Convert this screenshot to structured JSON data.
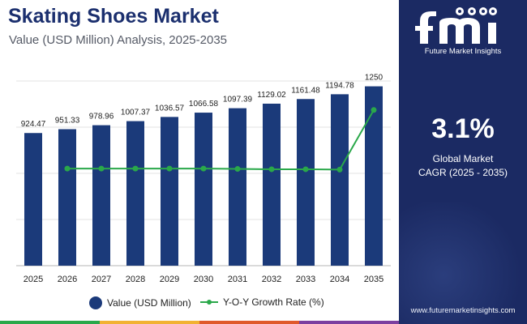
{
  "header": {
    "title": "Skating Shoes Market",
    "subtitle": "Value (USD Million) Analysis, 2025-2035"
  },
  "chart_data": {
    "type": "bar",
    "categories": [
      "2025",
      "2026",
      "2027",
      "2028",
      "2029",
      "2030",
      "2031",
      "2032",
      "2033",
      "2034",
      "2035"
    ],
    "series": [
      {
        "name": "Value (USD Million)",
        "type": "bar",
        "color": "#1b3a7a",
        "values": [
          924.47,
          951.33,
          978.96,
          1007.37,
          1036.57,
          1066.58,
          1097.39,
          1129.02,
          1161.48,
          1194.78,
          1250
        ],
        "data_labels": [
          "924.47",
          "951.33",
          "978.96",
          "1007.37",
          "1036.57",
          "1066.58",
          "1097.39",
          "1129.02",
          "1161.48",
          "1194.78",
          "1250"
        ]
      },
      {
        "name": "Y-O-Y Growth Rate (%)",
        "type": "line",
        "color": "#2aa84a",
        "values": [
          null,
          2.9,
          2.9,
          2.9,
          2.9,
          2.9,
          2.89,
          2.88,
          2.88,
          2.87,
          4.65
        ]
      }
    ],
    "ylim": [
      0,
      1400
    ],
    "y2lim": [
      0,
      6
    ],
    "grid": true,
    "legend_position": "bottom"
  },
  "side_panel": {
    "brand_text": "Future Market Insights",
    "cagr_value": "3.1%",
    "cagr_label_line1": "Global Market",
    "cagr_label_line2": "CAGR (2025 - 2035)",
    "website": "www.futuremarketinsights.com",
    "background_color": "#1b2a63"
  },
  "bottom_stripe_colors": [
    "#2aa84a",
    "#f2b233",
    "#e05a2b",
    "#7b3fa0"
  ]
}
